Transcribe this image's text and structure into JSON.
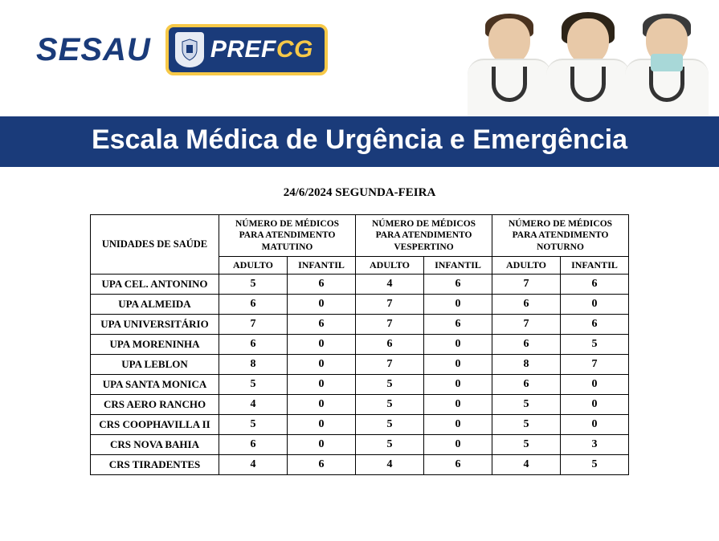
{
  "header": {
    "sesau": "SESAU",
    "prefcg_pref": "PREF",
    "prefcg_cg": "CG"
  },
  "title_bar": "Escala Médica de Urgência e Emergência",
  "date_line": "24/6/2024 SEGUNDA-FEIRA",
  "colors": {
    "brand_blue": "#1a3b7a",
    "accent_yellow": "#f7c948",
    "white": "#ffffff",
    "black": "#000000"
  },
  "table": {
    "units_header": "UNIDADES DE SAÚDE",
    "group_headers": [
      "NÚMERO DE MÉDICOS PARA ATENDIMENTO MATUTINO",
      "NÚMERO DE MÉDICOS PARA ATENDIMENTO VESPERTINO",
      "NÚMERO DE MÉDICOS PARA ATENDIMENTO NOTURNO"
    ],
    "sub_headers": [
      "ADULTO",
      "INFANTIL",
      "ADULTO",
      "INFANTIL",
      "ADULTO",
      "INFANTIL"
    ],
    "rows": [
      {
        "unit": "UPA CEL. ANTONINO",
        "vals": [
          "5",
          "6",
          "4",
          "6",
          "7",
          "6"
        ]
      },
      {
        "unit": "UPA ALMEIDA",
        "vals": [
          "6",
          "0",
          "7",
          "0",
          "6",
          "0"
        ]
      },
      {
        "unit": "UPA UNIVERSITÁRIO",
        "vals": [
          "7",
          "6",
          "7",
          "6",
          "7",
          "6"
        ]
      },
      {
        "unit": "UPA MORENINHA",
        "vals": [
          "6",
          "0",
          "6",
          "0",
          "6",
          "5"
        ]
      },
      {
        "unit": "UPA LEBLON",
        "vals": [
          "8",
          "0",
          "7",
          "0",
          "8",
          "7"
        ]
      },
      {
        "unit": "UPA SANTA MONICA",
        "vals": [
          "5",
          "0",
          "5",
          "0",
          "6",
          "0"
        ]
      },
      {
        "unit": "CRS AERO RANCHO",
        "vals": [
          "4",
          "0",
          "5",
          "0",
          "5",
          "0"
        ]
      },
      {
        "unit": "CRS COOPHAVILLA II",
        "vals": [
          "5",
          "0",
          "5",
          "0",
          "5",
          "0"
        ]
      },
      {
        "unit": "CRS NOVA BAHIA",
        "vals": [
          "6",
          "0",
          "5",
          "0",
          "5",
          "3"
        ]
      },
      {
        "unit": "CRS TIRADENTES",
        "vals": [
          "4",
          "6",
          "4",
          "6",
          "4",
          "5"
        ]
      }
    ]
  }
}
